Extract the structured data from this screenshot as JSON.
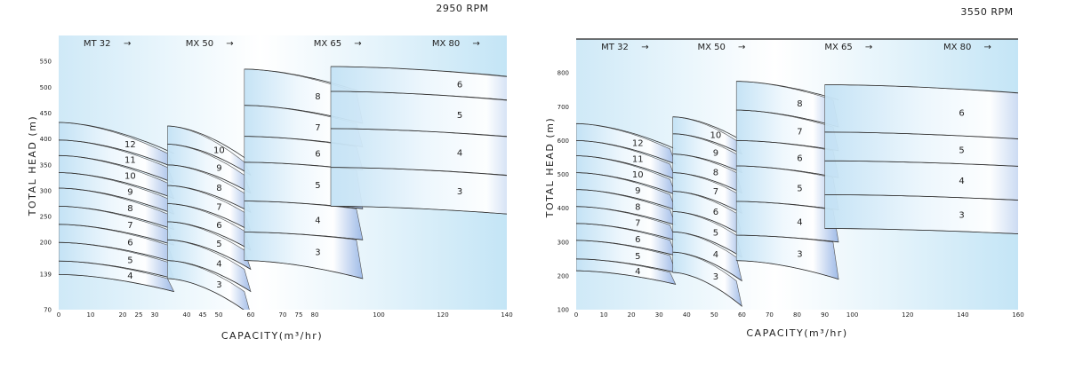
{
  "chart_data": [
    {
      "type": "area",
      "rpm_label": "2950 RPM",
      "xlabel": "CAPACITY(m³/hr)",
      "ylabel": "TOTAL HEAD (m)",
      "xlim": [
        0,
        140
      ],
      "ylim": [
        70,
        600
      ],
      "x_ticks": [
        0,
        10,
        20,
        25,
        30,
        40,
        45,
        50,
        60,
        70,
        75,
        80,
        100,
        120,
        140
      ],
      "y_ticks": [
        70,
        139,
        200,
        250,
        300,
        350,
        400,
        450,
        500,
        550
      ],
      "series_headers": [
        {
          "name": "MT 32",
          "arrow": "→",
          "x": 12
        },
        {
          "name": "MX 50",
          "arrow": "→",
          "x": 44
        },
        {
          "name": "MX 65",
          "arrow": "→",
          "x": 84
        },
        {
          "name": "MX 80",
          "arrow": "→",
          "x": 121
        }
      ],
      "series": [
        {
          "name": "MT 32",
          "x_start": 0,
          "x_end": 36,
          "shift": 23,
          "curves": [
            {
              "stage": "4",
              "h0": 138,
              "h1": 105
            },
            {
              "stage": "5",
              "h0": 164,
              "h1": 130
            },
            {
              "stage": "6",
              "h0": 200,
              "h1": 162
            },
            {
              "stage": "7",
              "h0": 235,
              "h1": 195
            },
            {
              "stage": "8",
              "h0": 270,
              "h1": 225
            },
            {
              "stage": "9",
              "h0": 305,
              "h1": 255
            },
            {
              "stage": "10",
              "h0": 335,
              "h1": 285
            },
            {
              "stage": "11",
              "h0": 368,
              "h1": 315
            },
            {
              "stage": "12",
              "h0": 398,
              "h1": 345
            },
            {
              "stage": "",
              "h0": 432,
              "h1": 372
            }
          ]
        },
        {
          "name": "MX 50",
          "x_start": 34,
          "x_end": 60,
          "shift": 21,
          "curves": [
            {
              "stage": "3",
              "h0": 130,
              "h1": 60
            },
            {
              "stage": "4",
              "h0": 165,
              "h1": 105
            },
            {
              "stage": "5",
              "h0": 205,
              "h1": 148
            },
            {
              "stage": "6",
              "h0": 240,
              "h1": 185
            },
            {
              "stage": "7",
              "h0": 275,
              "h1": 222
            },
            {
              "stage": "8",
              "h0": 310,
              "h1": 258
            },
            {
              "stage": "9",
              "h0": 350,
              "h1": 295
            },
            {
              "stage": "10",
              "h0": 390,
              "h1": 330
            },
            {
              "stage": "",
              "h0": 425,
              "h1": 355
            }
          ]
        },
        {
          "name": "MX 65",
          "x_start": 58,
          "x_end": 95,
          "shift": 40,
          "curves": [
            {
              "stage": "3",
              "h0": 165,
              "h1": 130
            },
            {
              "stage": "4",
              "h0": 220,
              "h1": 205
            },
            {
              "stage": "5",
              "h0": 280,
              "h1": 265
            },
            {
              "stage": "6",
              "h0": 355,
              "h1": 340
            },
            {
              "stage": "7",
              "h0": 405,
              "h1": 385
            },
            {
              "stage": "8",
              "h0": 465,
              "h1": 430
            },
            {
              "stage": "",
              "h0": 535,
              "h1": 490
            }
          ]
        },
        {
          "name": "MX 80",
          "x_start": 85,
          "x_end": 150,
          "shift": 32,
          "curves": [
            {
              "stage": "3",
              "h0": 270,
              "h1": 250
            },
            {
              "stage": "4",
              "h0": 345,
              "h1": 325
            },
            {
              "stage": "5",
              "h0": 420,
              "h1": 400
            },
            {
              "stage": "6",
              "h0": 492,
              "h1": 470
            },
            {
              "stage": "",
              "h0": 540,
              "h1": 515
            }
          ]
        }
      ]
    },
    {
      "type": "area",
      "rpm_label": "3550 RPM",
      "xlabel": "CAPACITY(m³/hr)",
      "ylabel": "TOTAL HEAD (m)",
      "xlim": [
        0,
        160
      ],
      "ylim": [
        100,
        900
      ],
      "x_ticks": [
        0,
        10,
        20,
        30,
        40,
        50,
        60,
        70,
        80,
        90,
        100,
        120,
        140,
        160
      ],
      "y_ticks": [
        100,
        200,
        300,
        400,
        500,
        600,
        700,
        800
      ],
      "series_headers": [
        {
          "name": "MT 32",
          "arrow": "→",
          "x": 14
        },
        {
          "name": "MX 50",
          "arrow": "→",
          "x": 49
        },
        {
          "name": "MX 65",
          "arrow": "→",
          "x": 95
        },
        {
          "name": "MX 80",
          "arrow": "→",
          "x": 138
        }
      ],
      "series": [
        {
          "name": "MT 32",
          "x_start": 0,
          "x_end": 36,
          "shift": 25,
          "curves": [
            {
              "stage": "4",
              "h0": 215,
              "h1": 175
            },
            {
              "stage": "5",
              "h0": 250,
              "h1": 210
            },
            {
              "stage": "6",
              "h0": 305,
              "h1": 260
            },
            {
              "stage": "7",
              "h0": 355,
              "h1": 305
            },
            {
              "stage": "8",
              "h0": 405,
              "h1": 350
            },
            {
              "stage": "9",
              "h0": 455,
              "h1": 395
            },
            {
              "stage": "10",
              "h0": 505,
              "h1": 440
            },
            {
              "stage": "11",
              "h0": 555,
              "h1": 485
            },
            {
              "stage": "12",
              "h0": 600,
              "h1": 530
            },
            {
              "stage": "",
              "h0": 650,
              "h1": 575
            }
          ]
        },
        {
          "name": "MX 50",
          "x_start": 35,
          "x_end": 60,
          "shift": 25,
          "curves": [
            {
              "stage": "3",
              "h0": 210,
              "h1": 110
            },
            {
              "stage": "4",
              "h0": 270,
              "h1": 185
            },
            {
              "stage": "5",
              "h0": 330,
              "h1": 255
            },
            {
              "stage": "6",
              "h0": 390,
              "h1": 320
            },
            {
              "stage": "7",
              "h0": 450,
              "h1": 385
            },
            {
              "stage": "8",
              "h0": 505,
              "h1": 445
            },
            {
              "stage": "9",
              "h0": 560,
              "h1": 505
            },
            {
              "stage": "10",
              "h0": 620,
              "h1": 560
            },
            {
              "stage": "",
              "h0": 670,
              "h1": 600
            }
          ]
        },
        {
          "name": "MX 65",
          "x_start": 58,
          "x_end": 95,
          "shift": 40,
          "curves": [
            {
              "stage": "3",
              "h0": 245,
              "h1": 190
            },
            {
              "stage": "4",
              "h0": 320,
              "h1": 300
            },
            {
              "stage": "5",
              "h0": 420,
              "h1": 395
            },
            {
              "stage": "6",
              "h0": 525,
              "h1": 490
            },
            {
              "stage": "7",
              "h0": 600,
              "h1": 570
            },
            {
              "stage": "8",
              "h0": 690,
              "h1": 640
            },
            {
              "stage": "",
              "h0": 775,
              "h1": 720
            }
          ]
        },
        {
          "name": "MX 80",
          "x_start": 90,
          "x_end": 170,
          "shift": 35,
          "curves": [
            {
              "stage": "3",
              "h0": 340,
              "h1": 320
            },
            {
              "stage": "4",
              "h0": 440,
              "h1": 420
            },
            {
              "stage": "5",
              "h0": 540,
              "h1": 520
            },
            {
              "stage": "6",
              "h0": 625,
              "h1": 600
            },
            {
              "stage": "",
              "h0": 765,
              "h1": 735
            }
          ]
        }
      ]
    }
  ]
}
